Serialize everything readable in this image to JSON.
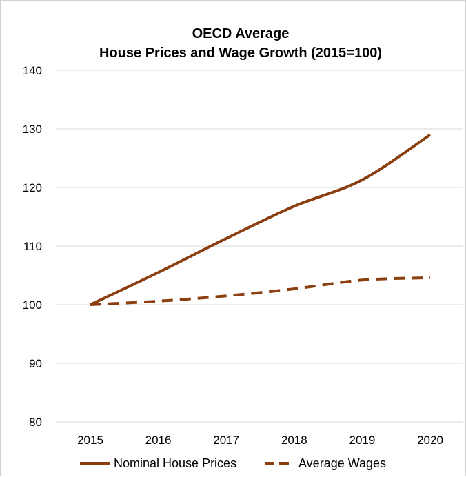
{
  "chart_data": {
    "type": "line",
    "title_lines": [
      "OECD Average",
      "House Prices and Wage Growth (2015=100)"
    ],
    "x": [
      "2015",
      "2016",
      "2017",
      "2018",
      "2019",
      "2020"
    ],
    "ylim": [
      80,
      140
    ],
    "yticks": [
      80,
      90,
      100,
      110,
      120,
      130,
      140
    ],
    "grid": true,
    "legend_position": "bottom",
    "series": [
      {
        "name": "Nominal House Prices",
        "values": [
          100,
          105.5,
          111.3,
          116.8,
          121.3,
          129
        ],
        "color": "#8B3E0F",
        "style": "solid"
      },
      {
        "name": "Average Wages",
        "values": [
          100,
          100.6,
          101.5,
          102.7,
          104.2,
          104.6
        ],
        "color": "#8B3E0F",
        "style": "dashed"
      }
    ]
  }
}
